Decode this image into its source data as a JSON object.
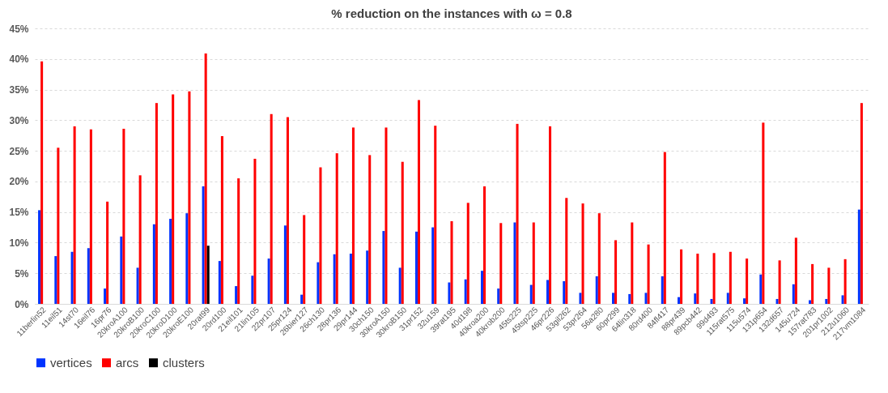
{
  "chart_data": {
    "type": "bar",
    "title": "% reduction on the instances with ω = 0.8",
    "categories": [
      "11berlin52",
      "11eil51",
      "14st70",
      "16eil76",
      "16pr76",
      "20kroA100",
      "20kroB100",
      "20kroC100",
      "20kroD100",
      "20kroE100",
      "20rat99",
      "20rd100",
      "21eil101",
      "21lin105",
      "22pr107",
      "25pr124",
      "26bier127",
      "26ch130",
      "28pr136",
      "29pr144",
      "30ch150",
      "30kroA150",
      "30kroB150",
      "31pr152",
      "32u159",
      "39rat195",
      "40d198",
      "40kroa200",
      "40krob200",
      "45ts225",
      "45tsp225",
      "46pr226",
      "53gil262",
      "53pr264",
      "56a280",
      "60pr299",
      "64lin318",
      "80rd400",
      "84fl417",
      "88pr439",
      "89pcb442",
      "99d493",
      "115rat575",
      "115u574",
      "131p654",
      "132d657",
      "145u724",
      "157rat783",
      "201pr1002",
      "212u1060",
      "217vm1084"
    ],
    "series": [
      {
        "name": "vertices",
        "color": "#0033ff",
        "values": [
          15.3,
          7.8,
          8.5,
          9.1,
          2.5,
          11.0,
          5.9,
          13.0,
          13.9,
          14.8,
          19.2,
          7.0,
          2.9,
          4.6,
          7.4,
          12.8,
          1.5,
          6.8,
          8.1,
          8.2,
          8.7,
          11.9,
          5.9,
          11.8,
          12.5,
          3.5,
          4.0,
          5.4,
          2.5,
          13.3,
          3.1,
          3.9,
          3.7,
          1.8,
          4.5,
          1.8,
          1.6,
          1.8,
          4.5,
          1.1,
          1.7,
          0.8,
          1.8,
          0.9,
          4.8,
          0.8,
          3.2,
          0.6,
          0.8,
          1.4,
          15.4
        ]
      },
      {
        "name": "arcs",
        "color": "#ff0000",
        "values": [
          39.6,
          25.5,
          29.0,
          28.5,
          16.7,
          28.6,
          21.0,
          32.8,
          34.2,
          34.7,
          40.9,
          27.4,
          20.5,
          23.7,
          31.0,
          30.5,
          14.5,
          22.3,
          24.6,
          28.8,
          24.3,
          28.8,
          23.2,
          33.3,
          29.1,
          13.5,
          16.5,
          19.2,
          13.2,
          29.4,
          13.3,
          29.0,
          17.3,
          16.4,
          14.8,
          10.4,
          13.3,
          9.7,
          24.8,
          8.9,
          8.2,
          8.3,
          8.5,
          7.4,
          29.6,
          7.1,
          10.8,
          6.5,
          5.9,
          7.3,
          32.8
        ]
      },
      {
        "name": "clusters",
        "color": "#000000",
        "values": [
          null,
          null,
          null,
          null,
          null,
          null,
          null,
          null,
          null,
          null,
          9.5,
          null,
          null,
          null,
          null,
          null,
          null,
          null,
          null,
          null,
          null,
          null,
          null,
          null,
          null,
          null,
          null,
          null,
          null,
          null,
          null,
          null,
          null,
          null,
          null,
          null,
          null,
          null,
          null,
          null,
          null,
          null,
          null,
          null,
          null,
          null,
          null,
          null,
          null,
          null,
          null
        ]
      }
    ],
    "ylim": [
      0,
      45
    ],
    "yticks": [
      {
        "value": 0,
        "label": "0%"
      },
      {
        "value": 5,
        "label": "5%"
      },
      {
        "value": 10,
        "label": "10%"
      },
      {
        "value": 15,
        "label": "15%"
      },
      {
        "value": 20,
        "label": "20%"
      },
      {
        "value": 25,
        "label": "25%"
      },
      {
        "value": 30,
        "label": "30%"
      },
      {
        "value": 35,
        "label": "35%"
      },
      {
        "value": 40,
        "label": "40%"
      },
      {
        "value": 45,
        "label": "45%"
      }
    ],
    "grid": "y",
    "legend": "bottom"
  }
}
